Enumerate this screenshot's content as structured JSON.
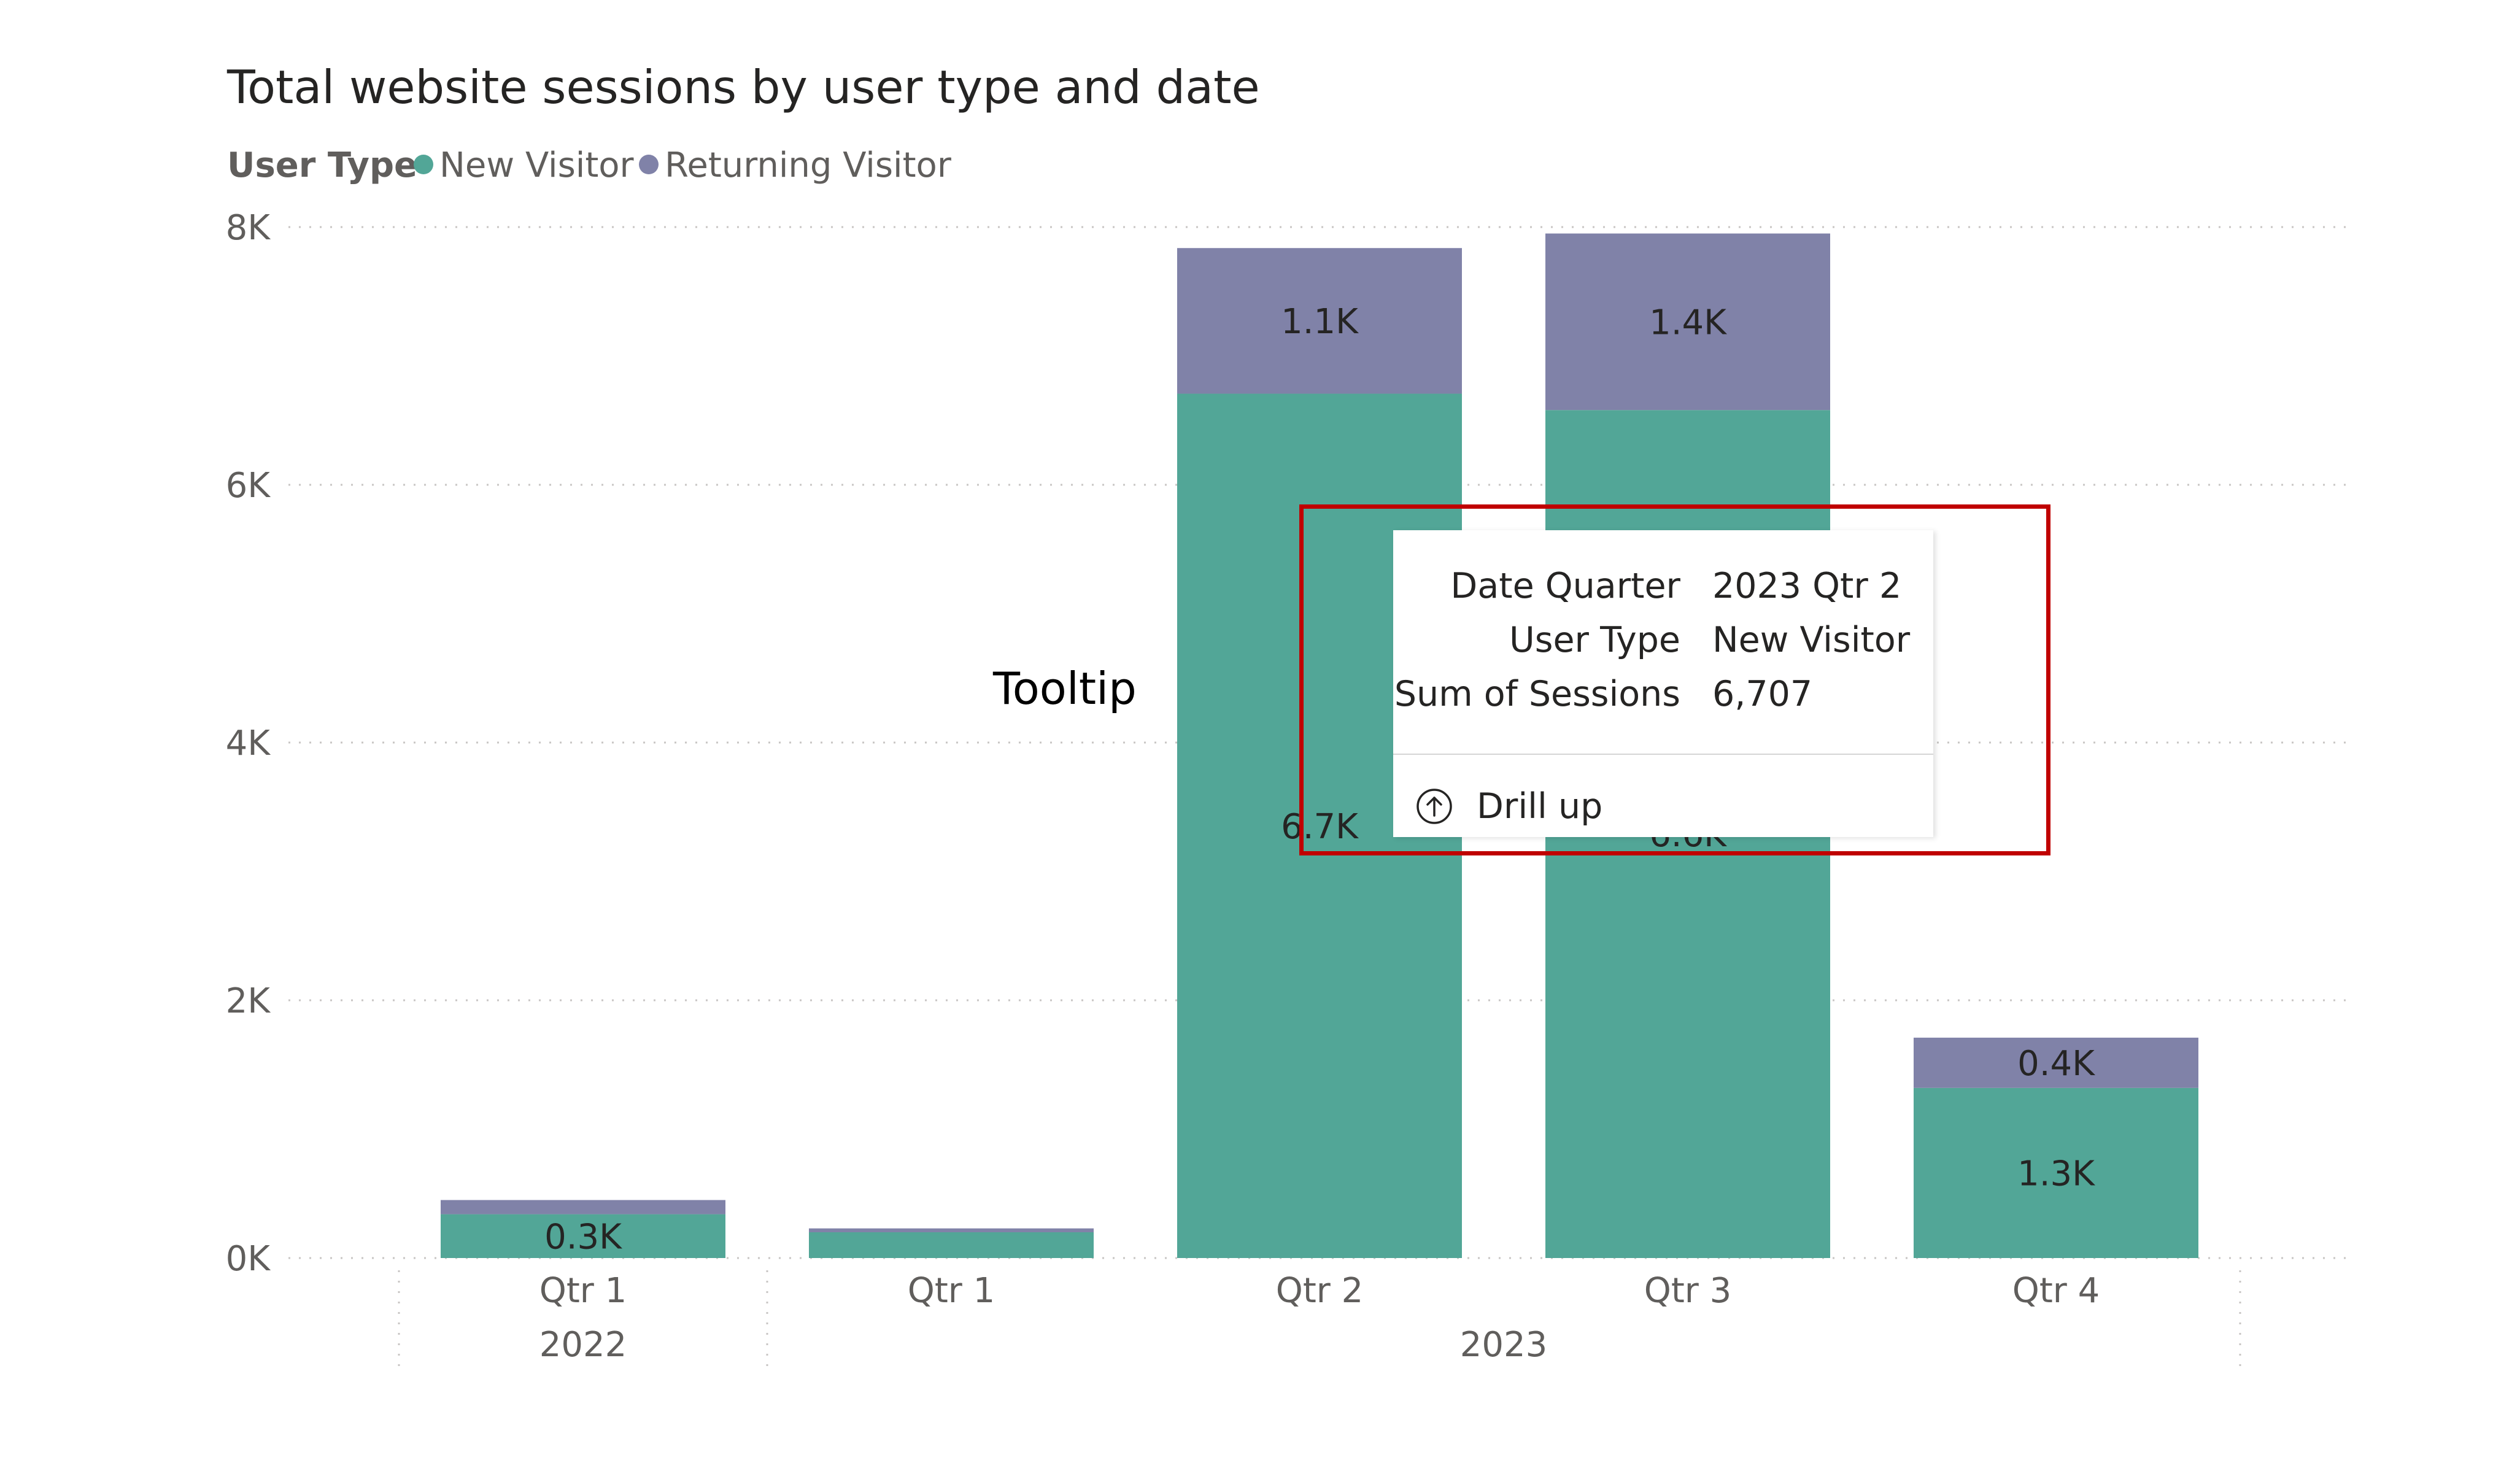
{
  "chart_data": {
    "type": "bar",
    "stacked": true,
    "title": "Total website sessions by user type and date",
    "legend": {
      "title": "User Type",
      "position": "top-left",
      "items": [
        {
          "name": "New Visitor",
          "color": "#52a697"
        },
        {
          "name": "Returning Visitor",
          "color": "#8082a8"
        }
      ]
    },
    "categories": [
      {
        "quarter": "Qtr 1",
        "year": "2022"
      },
      {
        "quarter": "Qtr 1",
        "year": "2023"
      },
      {
        "quarter": "Qtr 2",
        "year": "2023"
      },
      {
        "quarter": "Qtr 3",
        "year": "2023"
      },
      {
        "quarter": "Qtr 4",
        "year": "2023"
      }
    ],
    "year_groups": [
      {
        "label": "2022",
        "span": [
          0,
          0
        ]
      },
      {
        "label": "2023",
        "span": [
          1,
          4
        ]
      }
    ],
    "series": [
      {
        "name": "New Visitor",
        "color": "#52a697",
        "values": [
          340,
          200,
          6707,
          6580,
          1320
        ],
        "data_labels": [
          "0.3K",
          "",
          "6.7K",
          "6.6K",
          "1.3K"
        ]
      },
      {
        "name": "Returning Visitor",
        "color": "#8082a8",
        "values": [
          110,
          30,
          1130,
          1370,
          390
        ],
        "data_labels": [
          "",
          "",
          "1.1K",
          "1.4K",
          "0.4K"
        ]
      }
    ],
    "y_ticks": [
      {
        "value": 0,
        "label": "0K"
      },
      {
        "value": 2000,
        "label": "2K"
      },
      {
        "value": 4000,
        "label": "4K"
      },
      {
        "value": 6000,
        "label": "6K"
      },
      {
        "value": 8000,
        "label": "8K"
      }
    ],
    "ylim": [
      0,
      8000
    ],
    "grid": true,
    "xlabel": "",
    "ylabel": ""
  },
  "tooltip": {
    "rows": [
      {
        "key": "Date Quarter",
        "value": "2023 Qtr 2"
      },
      {
        "key": "User Type",
        "value": "New Visitor"
      },
      {
        "key": "Sum of Sessions",
        "value": "6,707"
      }
    ],
    "drill_up_label": "Drill up",
    "drill_icon": "arrow-up-circle-icon"
  },
  "annotation": {
    "label": "Tooltip",
    "box_color": "#c00000"
  }
}
